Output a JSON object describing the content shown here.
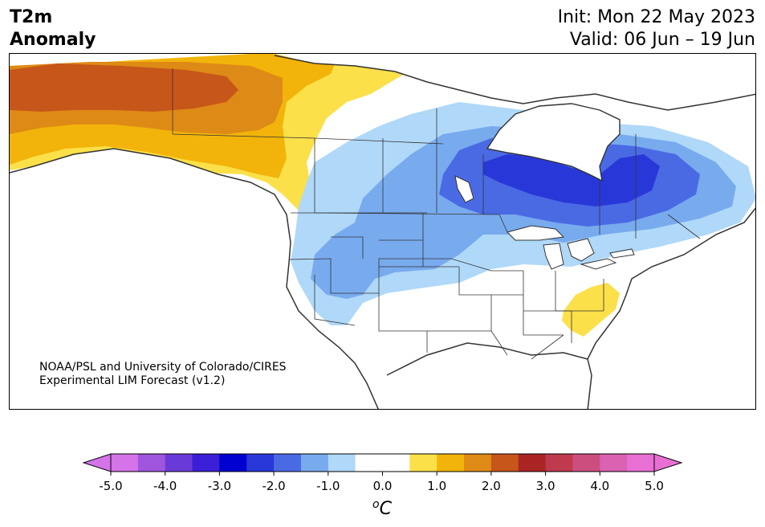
{
  "header": {
    "variable": "T2m",
    "subtitle": "Anomaly",
    "init": "Init: Mon 22 May 2023",
    "valid": "Valid: 06 Jun – 19 Jun"
  },
  "credit": {
    "line1": "NOAA/PSL and University of Colorado/CIRES",
    "line2": "Experimental LIM Forecast (v1.2)"
  },
  "colorbar": {
    "unit": "oC",
    "tick_labels": [
      "-5.0",
      "-4.0",
      "-3.0",
      "-2.0",
      "-1.0",
      "0.0",
      "1.0",
      "2.0",
      "3.0",
      "4.0",
      "5.0"
    ],
    "colors": [
      "#d474e8",
      "#9f55dd",
      "#6a3ad8",
      "#3a1fd6",
      "#0000d0",
      "#2838d8",
      "#4a6ae4",
      "#78aaee",
      "#b0d8f8",
      "#ffffff",
      "#ffffff",
      "#fbe04a",
      "#f2b40a",
      "#de8a16",
      "#c7561a",
      "#ab2424",
      "#c03a4e",
      "#cc4e7e",
      "#da62b0",
      "#e870d4"
    ],
    "extend_low_color": "#d474e8",
    "extend_high_color": "#e870d4"
  },
  "map_legend": {
    "warm_colors": {
      "plus_0_5": "#fbe04a",
      "plus_1": "#f2b40a",
      "plus_1_5": "#de8a16",
      "plus_2": "#c7561a"
    },
    "cold_colors": {
      "minus_0_5": "#b0d8f8",
      "minus_1": "#78aaee",
      "minus_1_5": "#4a6ae4",
      "minus_2": "#2838d8"
    },
    "line_color": "#333333"
  }
}
